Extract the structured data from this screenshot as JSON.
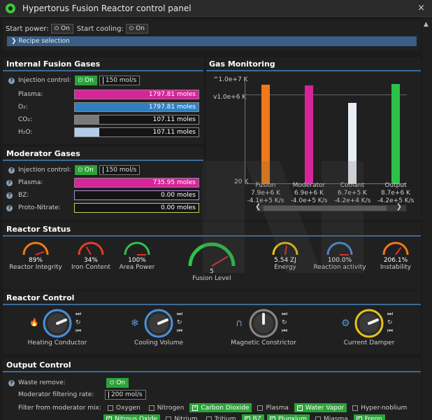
{
  "window": {
    "title": "Hypertorus Fusion Reactor control panel",
    "close": "×"
  },
  "topbar": {
    "start_power_label": "Start power:",
    "start_power_btn": "On",
    "start_cooling_label": "Start cooling:",
    "start_cooling_btn": "On",
    "recipe_label": "Recipe selection"
  },
  "fusion_gases": {
    "title": "Internal Fusion Gases",
    "injection_label": "Injection control:",
    "injection_btn": "On",
    "rate": "150 mol/s",
    "gases": [
      {
        "name": "Plasma:",
        "value": "1797.81 moles",
        "fill": 1.0,
        "color": "#d6259a"
      },
      {
        "name": "O₂:",
        "value": "1797.81 moles",
        "fill": 1.0,
        "color": "#2f7fc0"
      },
      {
        "name": "CO₂:",
        "value": "107.11 moles",
        "fill": 0.2,
        "color": "#7a7a7a"
      },
      {
        "name": "H₂O:",
        "value": "107.11 moles",
        "fill": 0.2,
        "color": "#b3cde8"
      }
    ]
  },
  "moderator_gases": {
    "title": "Moderator Gases",
    "injection_label": "Injection control:",
    "injection_btn": "On",
    "rate": "150 mol/s",
    "gases": [
      {
        "name": "Plasma:",
        "value": "735.95 moles",
        "fill": 1.0,
        "color": "#d6259a",
        "border": "#888"
      },
      {
        "name": "BZ:",
        "value": "0.00 moles",
        "fill": 0.0,
        "color": "#8a4fc2",
        "border": "#b58ad6"
      },
      {
        "name": "Proto-Nitrate:",
        "value": "0.00 moles",
        "fill": 0.0,
        "color": "#9acb3a",
        "border": "#b5d65a"
      }
    ]
  },
  "gas_monitoring": {
    "title": "Gas Monitoring",
    "ytick_top": "1.0e+7 K",
    "ytick_mid": "1.0e+6 K",
    "ytick_bottom": "20 K"
  },
  "chart_data": {
    "type": "bar",
    "categories": [
      "Fusion",
      "Moderator",
      "Coolant",
      "Output"
    ],
    "temperatures": [
      "7.9e+6 K",
      "6.9e+6 K",
      "6.7e+5 K",
      "8.7e+6 K"
    ],
    "rates": [
      "-4.1e+5 K/s",
      "-4.0e+5 K/s",
      "-4.2e+4 K/s",
      "-4.2e+5 K/s"
    ],
    "values": [
      7900000.0,
      6900000.0,
      670000.0,
      8700000.0
    ],
    "colors": [
      "#f07a1a",
      "#d6259a",
      "#e8eef5",
      "#2cc24a"
    ],
    "ylim": [
      20,
      10000000.0
    ],
    "yscale": "log"
  },
  "reactor_status": {
    "title": "Reactor Status",
    "gauges": [
      {
        "value": "89%",
        "label": "Reactor Integrity",
        "level": 0.89
      },
      {
        "value": "34%",
        "label": "Iron Content",
        "level": 0.34
      },
      {
        "value": "100%",
        "label": "Area Power",
        "level": 1.0
      },
      {
        "value": "5",
        "label": "Fusion Level",
        "level": 0.83
      },
      {
        "value": "5.54 ZJ",
        "label": "Energy",
        "level": 0.55
      },
      {
        "value": "100.0%",
        "label": "Reaction activity",
        "level": 1.0
      },
      {
        "value": "206.1%",
        "label": "Instability",
        "level": 0.7
      }
    ]
  },
  "reactor_control": {
    "title": "Reactor Control",
    "knobs": [
      {
        "label": "Heating Conductor",
        "ring": "#4a90d9",
        "level": 0.75
      },
      {
        "label": "Cooling Volume",
        "ring": "#4a90d9",
        "level": 0.75
      },
      {
        "label": "Magnetic Constrictor",
        "ring": "#888888",
        "level": 0.5
      },
      {
        "label": "Current Damper",
        "ring": "#e6c21a",
        "level": 0.75
      }
    ]
  },
  "output_control": {
    "title": "Output Control",
    "waste_label": "Waste remove:",
    "waste_btn": "On",
    "filter_rate_label": "Moderator filtering rate:",
    "filter_rate": "200 mol/s",
    "filter_label": "Filter from moderator mix:",
    "row1": [
      {
        "label": "Oxygen",
        "on": false
      },
      {
        "label": "Nitrogen",
        "on": false
      },
      {
        "label": "Carbon Dioxide",
        "on": true
      },
      {
        "label": "Plasma",
        "on": false
      },
      {
        "label": "Water Vapor",
        "on": true
      },
      {
        "label": "Hyper-noblium",
        "on": false
      }
    ],
    "row2": [
      {
        "label": "Nitrous Oxide",
        "on": true
      },
      {
        "label": "Nitrium",
        "on": false
      },
      {
        "label": "Tritium",
        "on": false
      },
      {
        "label": "BZ",
        "on": true
      },
      {
        "label": "Pluoxium",
        "on": true
      },
      {
        "label": "Miasma",
        "on": false
      },
      {
        "label": "Freon",
        "on": true
      }
    ]
  }
}
